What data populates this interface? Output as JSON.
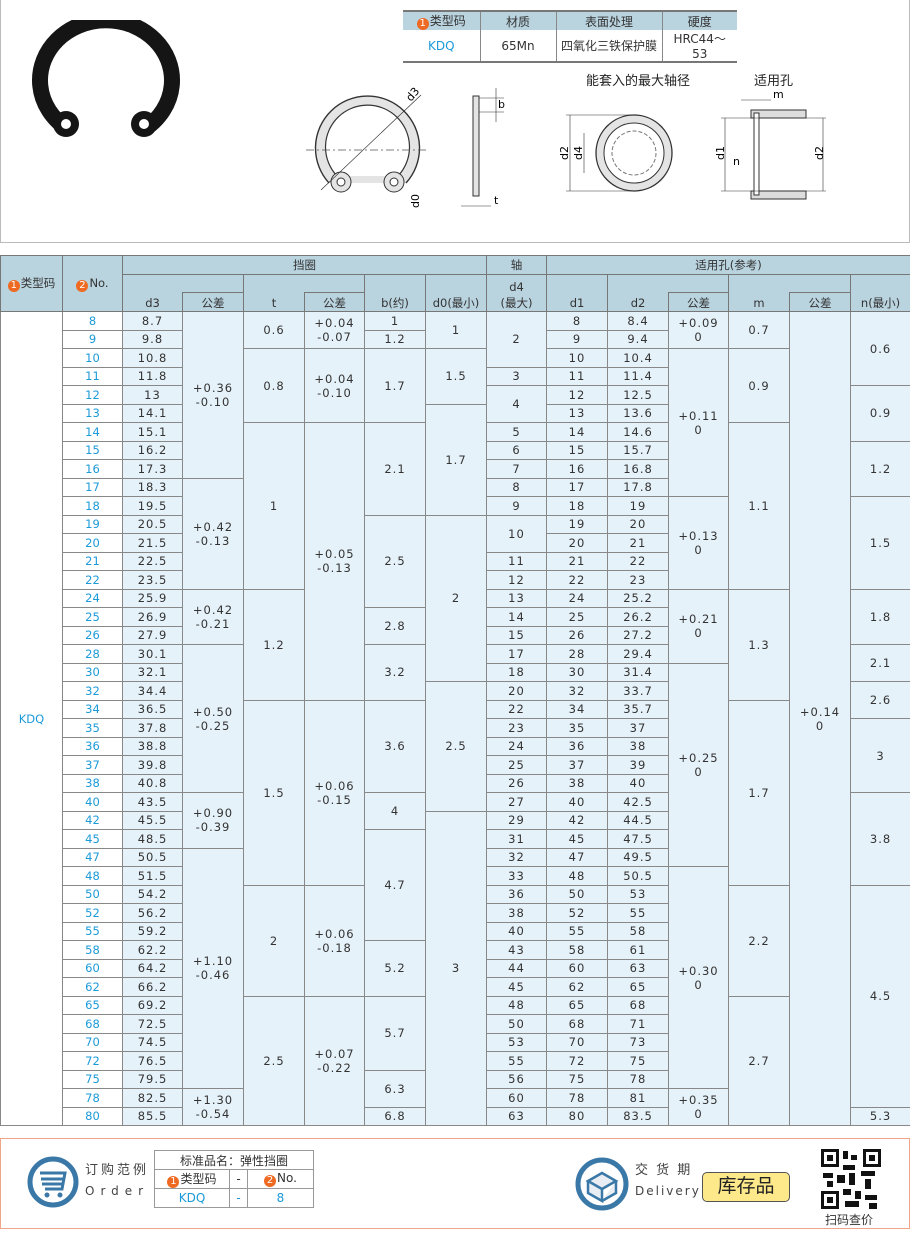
{
  "spec_table": {
    "headers": [
      "类型码",
      "材质",
      "表面处理",
      "硬度"
    ],
    "badge": "1",
    "row": [
      "KDQ",
      "65Mn",
      "四氧化三铁保护膜",
      "HRC44～53"
    ]
  },
  "drawings": {
    "caption_shaft": "能套入的最大轴径",
    "caption_hole": "适用孔",
    "labels": {
      "d3": "d3",
      "d0": "d0",
      "b": "b",
      "t": "t",
      "d2": "d2",
      "d4": "d4",
      "d1": "d1",
      "n": "n",
      "m": "m"
    }
  },
  "table": {
    "group_headers": {
      "ring": "挡圈",
      "shaft": "轴",
      "hole": "适用孔(参考)"
    },
    "col_headers": {
      "type": "类型码",
      "type_badge": "1",
      "no": "No.",
      "no_badge": "2",
      "d3": "d3",
      "tol": "公差",
      "t": "t",
      "b": "b(约)",
      "d0": "d0(最小)",
      "d4": "d4",
      "d4_sub": "(最大)",
      "d1": "d1",
      "d2": "d2",
      "m": "m",
      "n": "n(最小)"
    },
    "type_code": "KDQ",
    "columns": {
      "no": [
        [
          "8"
        ],
        [
          "9"
        ],
        [
          "10"
        ],
        [
          "11"
        ],
        [
          "12"
        ],
        [
          "13"
        ],
        [
          "14"
        ],
        [
          "15"
        ],
        [
          "16"
        ],
        [
          "17"
        ],
        [
          "18"
        ],
        [
          "19"
        ],
        [
          "20"
        ],
        [
          "21"
        ],
        [
          "22"
        ],
        [
          "24"
        ],
        [
          "25"
        ],
        [
          "26"
        ],
        [
          "28"
        ],
        [
          "30"
        ],
        [
          "32"
        ],
        [
          "34"
        ],
        [
          "35"
        ],
        [
          "36"
        ],
        [
          "37"
        ],
        [
          "38"
        ],
        [
          "40"
        ],
        [
          "42"
        ],
        [
          "45"
        ],
        [
          "47"
        ],
        [
          "48"
        ],
        [
          "50"
        ],
        [
          "52"
        ],
        [
          "55"
        ],
        [
          "58"
        ],
        [
          "60"
        ],
        [
          "62"
        ],
        [
          "65"
        ],
        [
          "68"
        ],
        [
          "70"
        ],
        [
          "72"
        ],
        [
          "75"
        ],
        [
          "78"
        ],
        [
          "80"
        ]
      ],
      "d3": [
        [
          "8.7"
        ],
        [
          "9.8"
        ],
        [
          "10.8"
        ],
        [
          "11.8"
        ],
        [
          "13"
        ],
        [
          "14.1"
        ],
        [
          "15.1"
        ],
        [
          "16.2"
        ],
        [
          "17.3"
        ],
        [
          "18.3"
        ],
        [
          "19.5"
        ],
        [
          "20.5"
        ],
        [
          "21.5"
        ],
        [
          "22.5"
        ],
        [
          "23.5"
        ],
        [
          "25.9"
        ],
        [
          "26.9"
        ],
        [
          "27.9"
        ],
        [
          "30.1"
        ],
        [
          "32.1"
        ],
        [
          "34.4"
        ],
        [
          "36.5"
        ],
        [
          "37.8"
        ],
        [
          "38.8"
        ],
        [
          "39.8"
        ],
        [
          "40.8"
        ],
        [
          "43.5"
        ],
        [
          "45.5"
        ],
        [
          "48.5"
        ],
        [
          "50.5"
        ],
        [
          "51.5"
        ],
        [
          "54.2"
        ],
        [
          "56.2"
        ],
        [
          "59.2"
        ],
        [
          "62.2"
        ],
        [
          "64.2"
        ],
        [
          "66.2"
        ],
        [
          "69.2"
        ],
        [
          "72.5"
        ],
        [
          "74.5"
        ],
        [
          "76.5"
        ],
        [
          "79.5"
        ],
        [
          "82.5"
        ],
        [
          "85.5"
        ]
      ],
      "d3_tol": [
        [
          "+0.36\n-0.10",
          9
        ],
        [
          "+0.42\n-0.13",
          6
        ],
        [
          "+0.42\n-0.21",
          3
        ],
        [
          "+0.50\n-0.25",
          8
        ],
        [
          "+0.90\n-0.39",
          3
        ],
        [
          "+1.10\n-0.46",
          13
        ],
        [
          "+1.30\n-0.54",
          2
        ]
      ],
      "t": [
        [
          "0.6",
          2
        ],
        [
          "0.8",
          4
        ],
        [
          "1",
          9
        ],
        [
          "1.2",
          6
        ],
        [
          "1.5",
          10
        ],
        [
          "2",
          6
        ],
        [
          "2.5",
          7
        ]
      ],
      "t_tol": [
        [
          "+0.04\n-0.07",
          2
        ],
        [
          "+0.04\n-0.10",
          4
        ],
        [
          "+0.05\n-0.13",
          15
        ],
        [
          "+0.06\n-0.15",
          10
        ],
        [
          "+0.06\n-0.18",
          6
        ],
        [
          "+0.07\n-0.22",
          7
        ]
      ],
      "b": [
        [
          "1",
          1
        ],
        [
          "1.2",
          1
        ],
        [
          "1.7",
          4
        ],
        [
          "2.1",
          5
        ],
        [
          "2.5",
          5
        ],
        [
          "2.8",
          2
        ],
        [
          "3.2",
          3
        ],
        [
          "3.6",
          5
        ],
        [
          "4",
          2
        ],
        [
          "4.7",
          6
        ],
        [
          "5.2",
          3
        ],
        [
          "5.7",
          4
        ],
        [
          "6.3",
          2
        ],
        [
          "6.8",
          1
        ]
      ],
      "d0": [
        [
          "1",
          2
        ],
        [
          "1.5",
          3
        ],
        [
          "1.7",
          6
        ],
        [
          "2",
          9
        ],
        [
          "2.5",
          7
        ],
        [
          "3",
          17
        ]
      ],
      "d4": [
        [
          "2",
          3
        ],
        [
          "3"
        ],
        [
          "4",
          2
        ],
        [
          "5"
        ],
        [
          "6"
        ],
        [
          "7"
        ],
        [
          "8"
        ],
        [
          "9"
        ],
        [
          "10",
          2
        ],
        [
          "11"
        ],
        [
          "12"
        ],
        [
          "13"
        ],
        [
          "14"
        ],
        [
          "15"
        ],
        [
          "17"
        ],
        [
          "18"
        ],
        [
          "20"
        ],
        [
          "22"
        ],
        [
          "23"
        ],
        [
          "24"
        ],
        [
          "25"
        ],
        [
          "26"
        ],
        [
          "27"
        ],
        [
          "29"
        ],
        [
          "31"
        ],
        [
          "32"
        ],
        [
          "33"
        ],
        [
          "36"
        ],
        [
          "38"
        ],
        [
          "40"
        ],
        [
          "43"
        ],
        [
          "44"
        ],
        [
          "45"
        ],
        [
          "48"
        ],
        [
          "50"
        ],
        [
          "53"
        ],
        [
          "55"
        ],
        [
          "56"
        ],
        [
          "60"
        ],
        [
          "63"
        ]
      ],
      "d1": [
        [
          "8"
        ],
        [
          "9"
        ],
        [
          "10"
        ],
        [
          "11"
        ],
        [
          "12"
        ],
        [
          "13"
        ],
        [
          "14"
        ],
        [
          "15"
        ],
        [
          "16"
        ],
        [
          "17"
        ],
        [
          "18"
        ],
        [
          "19"
        ],
        [
          "20"
        ],
        [
          "21"
        ],
        [
          "22"
        ],
        [
          "24"
        ],
        [
          "25"
        ],
        [
          "26"
        ],
        [
          "28"
        ],
        [
          "30"
        ],
        [
          "32"
        ],
        [
          "34"
        ],
        [
          "35"
        ],
        [
          "36"
        ],
        [
          "37"
        ],
        [
          "38"
        ],
        [
          "40"
        ],
        [
          "42"
        ],
        [
          "45"
        ],
        [
          "47"
        ],
        [
          "48"
        ],
        [
          "50"
        ],
        [
          "52"
        ],
        [
          "55"
        ],
        [
          "58"
        ],
        [
          "60"
        ],
        [
          "62"
        ],
        [
          "65"
        ],
        [
          "68"
        ],
        [
          "70"
        ],
        [
          "72"
        ],
        [
          "75"
        ],
        [
          "78"
        ],
        [
          "80"
        ]
      ],
      "d2": [
        [
          "8.4"
        ],
        [
          "9.4"
        ],
        [
          "10.4"
        ],
        [
          "11.4"
        ],
        [
          "12.5"
        ],
        [
          "13.6"
        ],
        [
          "14.6"
        ],
        [
          "15.7"
        ],
        [
          "16.8"
        ],
        [
          "17.8"
        ],
        [
          "19"
        ],
        [
          "20"
        ],
        [
          "21"
        ],
        [
          "22"
        ],
        [
          "23"
        ],
        [
          "25.2"
        ],
        [
          "26.2"
        ],
        [
          "27.2"
        ],
        [
          "29.4"
        ],
        [
          "31.4"
        ],
        [
          "33.7"
        ],
        [
          "35.7"
        ],
        [
          "37"
        ],
        [
          "38"
        ],
        [
          "39"
        ],
        [
          "40"
        ],
        [
          "42.5"
        ],
        [
          "44.5"
        ],
        [
          "47.5"
        ],
        [
          "49.5"
        ],
        [
          "50.5"
        ],
        [
          "53"
        ],
        [
          "55"
        ],
        [
          "58"
        ],
        [
          "61"
        ],
        [
          "63"
        ],
        [
          "65"
        ],
        [
          "68"
        ],
        [
          "71"
        ],
        [
          "73"
        ],
        [
          "75"
        ],
        [
          "78"
        ],
        [
          "81"
        ],
        [
          "83.5"
        ]
      ],
      "d2_tol": [
        [
          "+0.09\n0",
          2
        ],
        [
          "+0.11\n0",
          8
        ],
        [
          "+0.13\n0",
          5
        ],
        [
          "+0.21\n0",
          4
        ],
        [
          "+0.25\n0",
          11
        ],
        [
          "+0.30\n0",
          12
        ],
        [
          "+0.35\n0",
          2
        ]
      ],
      "m": [
        [
          "0.7",
          2
        ],
        [
          "0.9",
          4
        ],
        [
          "1.1",
          9
        ],
        [
          "1.3",
          6
        ],
        [
          "1.7",
          10
        ],
        [
          "2.2",
          6
        ],
        [
          "2.7",
          7
        ]
      ],
      "m_tol": [
        [
          "+0.14\n0",
          44
        ]
      ],
      "n": [
        [
          "0.6",
          4
        ],
        [
          "0.9",
          3
        ],
        [
          "1.2",
          3
        ],
        [
          "1.5",
          5
        ],
        [
          "1.8",
          3
        ],
        [
          "2.1",
          2
        ],
        [
          "2.6",
          2
        ],
        [
          "3",
          4
        ],
        [
          "3.8",
          5
        ],
        [
          "4.5",
          12
        ],
        [
          "5.3",
          1
        ]
      ]
    }
  },
  "order_example": {
    "title_cn": "订购范例",
    "title_en": "Order",
    "product_label": "标准品名：弹性挡圈",
    "col1": "类型码",
    "col1_badge": "1",
    "dash": "-",
    "col2": "No.",
    "col2_badge": "2",
    "val1": "KDQ",
    "val2": "8"
  },
  "delivery": {
    "title_cn": "交 货 期",
    "title_en": "Delivery",
    "status": "库存品"
  },
  "qr": {
    "label": "扫码查价"
  },
  "colors": {
    "accent_blue": "#1b9ad8",
    "header_bg": "#b9d3df",
    "cell_bg": "#e6f2f9",
    "badge": "#ee6a22",
    "stock_bg": "#fde88a",
    "icon_blue": "#3a78a8"
  }
}
